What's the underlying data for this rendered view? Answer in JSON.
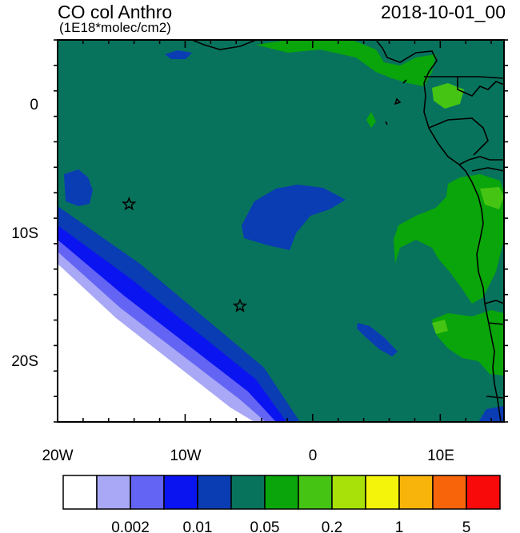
{
  "map": {
    "title": "CO col Anthro",
    "units": "(1E18*molec/cm2)",
    "datetime": "2018-10-01_00",
    "lon_labels": [
      "20W",
      "10W",
      "0",
      "10E"
    ],
    "lat_labels": [
      "0",
      "10S",
      "20S"
    ],
    "lon_range": [
      -20,
      15
    ],
    "lat_range": [
      -25,
      5
    ],
    "stations": [
      {
        "lon": -14.4,
        "lat": -7.9
      },
      {
        "lon": -5.7,
        "lat": -15.9
      }
    ]
  },
  "colorbar": {
    "colors": [
      "#ffffff",
      "#a8a8f6",
      "#6464f4",
      "#0a14f0",
      "#0a3cb4",
      "#08735c",
      "#0aa50a",
      "#46c414",
      "#a8e10a",
      "#f4f40a",
      "#f8b40a",
      "#f8640a",
      "#f80a0a"
    ],
    "labels": [
      "0.002",
      "0.01",
      "0.05",
      "0.2",
      "1",
      "5"
    ]
  }
}
